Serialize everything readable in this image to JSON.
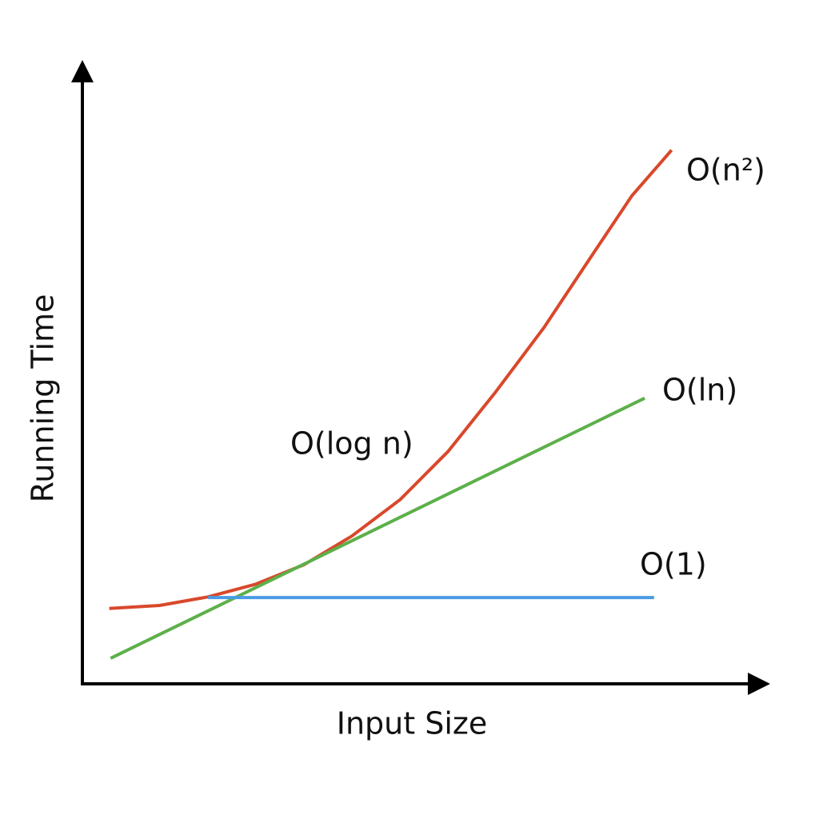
{
  "chart_data": {
    "type": "line",
    "xlabel": "Input Size",
    "ylabel": "Running Time",
    "xlim": [
      0,
      100
    ],
    "ylim": [
      0,
      100
    ],
    "series": [
      {
        "name": "O(n²)",
        "color": "#d9482b",
        "x": [
          4.0,
          11.5,
          18.7,
          25.8,
          33.0,
          40.1,
          47.3,
          54.4,
          61.5,
          68.7,
          75.8,
          81.8,
          87.7
        ],
        "values": [
          12.4,
          12.9,
          14.3,
          16.4,
          19.6,
          24.3,
          30.3,
          38.2,
          48.0,
          58.6,
          70.4,
          80.3,
          87.8
        ]
      },
      {
        "name": "O(ln)",
        "color": "#5cb04a",
        "x": [
          4.2,
          83.7
        ],
        "values": [
          4.2,
          47.0
        ]
      },
      {
        "name": "O(1)",
        "color": "#4a9be3",
        "x": [
          18.7,
          85.1
        ],
        "values": [
          14.2,
          14.2
        ]
      }
    ],
    "annotations": [
      {
        "text": "O(log n)"
      }
    ]
  }
}
